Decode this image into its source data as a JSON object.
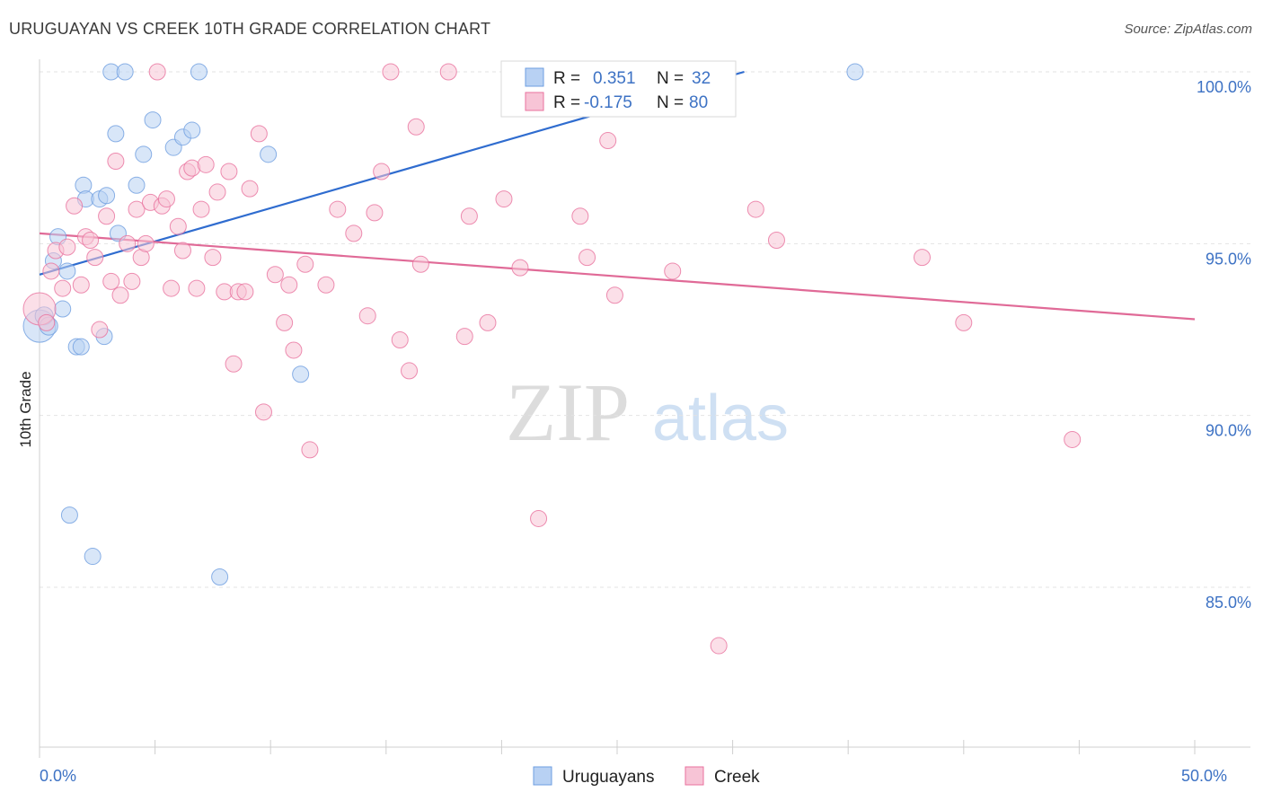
{
  "title": "URUGUAYAN VS CREEK 10TH GRADE CORRELATION CHART",
  "source": "Source: ZipAtlas.com",
  "watermark": {
    "zip": "ZIP",
    "atlas": "atlas"
  },
  "legend_top": {
    "rows": [
      {
        "r_label": "R =",
        "r_value": "0.351",
        "n_label": "N =",
        "n_value": "32"
      },
      {
        "r_label": "R =",
        "r_value": "-0.175",
        "n_label": "N =",
        "n_value": "80"
      }
    ]
  },
  "chart_data": {
    "type": "scatter",
    "ylabel": "10th Grade",
    "xlim": [
      0,
      50
    ],
    "ylim": [
      80.3,
      100.8
    ],
    "x_tick_labels": [
      {
        "x": 0,
        "label": "0.0%"
      },
      {
        "x": 50,
        "label": "50.0%"
      }
    ],
    "y_tick_labels": [
      {
        "y": 100,
        "label": "100.0%"
      },
      {
        "y": 95,
        "label": "95.0%"
      },
      {
        "y": 90,
        "label": "90.0%"
      },
      {
        "y": 85,
        "label": "85.0%"
      }
    ],
    "grid": true,
    "legend_position": "bottom-center",
    "series": [
      {
        "name": "Uruguayans",
        "color": "#6e9ee0",
        "fill": "#b8d1f3",
        "r": 0.351,
        "n": 32,
        "trend": {
          "x": [
            0,
            30.5
          ],
          "y": [
            94.1,
            100.0
          ],
          "dashed_to_x": 30.5
        },
        "points": [
          {
            "x": 0.0,
            "y": 92.6,
            "s": 18
          },
          {
            "x": 0.2,
            "y": 92.9,
            "s": 10
          },
          {
            "x": 0.4,
            "y": 92.6,
            "s": 10
          },
          {
            "x": 0.6,
            "y": 94.5,
            "s": 9
          },
          {
            "x": 0.8,
            "y": 95.2,
            "s": 9
          },
          {
            "x": 1.0,
            "y": 93.1,
            "s": 9
          },
          {
            "x": 1.2,
            "y": 94.2,
            "s": 9
          },
          {
            "x": 1.3,
            "y": 87.1,
            "s": 9
          },
          {
            "x": 1.6,
            "y": 92.0,
            "s": 9
          },
          {
            "x": 1.8,
            "y": 92.0,
            "s": 9
          },
          {
            "x": 1.9,
            "y": 96.7,
            "s": 9
          },
          {
            "x": 2.0,
            "y": 96.3,
            "s": 9
          },
          {
            "x": 2.3,
            "y": 85.9,
            "s": 9
          },
          {
            "x": 2.6,
            "y": 96.3,
            "s": 9
          },
          {
            "x": 2.8,
            "y": 92.3,
            "s": 9
          },
          {
            "x": 2.9,
            "y": 96.4,
            "s": 9
          },
          {
            "x": 3.1,
            "y": 100.0,
            "s": 9
          },
          {
            "x": 3.3,
            "y": 98.2,
            "s": 9
          },
          {
            "x": 3.4,
            "y": 95.3,
            "s": 9
          },
          {
            "x": 3.7,
            "y": 100.0,
            "s": 9
          },
          {
            "x": 4.2,
            "y": 96.7,
            "s": 9
          },
          {
            "x": 4.5,
            "y": 97.6,
            "s": 9
          },
          {
            "x": 4.9,
            "y": 98.6,
            "s": 9
          },
          {
            "x": 5.8,
            "y": 97.8,
            "s": 9
          },
          {
            "x": 6.2,
            "y": 98.1,
            "s": 9
          },
          {
            "x": 6.6,
            "y": 98.3,
            "s": 9
          },
          {
            "x": 6.9,
            "y": 100.0,
            "s": 9
          },
          {
            "x": 7.8,
            "y": 85.3,
            "s": 9
          },
          {
            "x": 9.9,
            "y": 97.6,
            "s": 9
          },
          {
            "x": 11.3,
            "y": 91.2,
            "s": 9
          },
          {
            "x": 23.6,
            "y": 100.0,
            "s": 9
          },
          {
            "x": 35.3,
            "y": 100.0,
            "s": 9
          }
        ]
      },
      {
        "name": "Creek",
        "color": "#e8729e",
        "fill": "#f7c4d6",
        "r": -0.175,
        "n": 80,
        "trend": {
          "x": [
            0,
            50
          ],
          "y": [
            95.3,
            92.8
          ]
        },
        "points": [
          {
            "x": 0.0,
            "y": 93.1,
            "s": 18
          },
          {
            "x": 0.3,
            "y": 92.7,
            "s": 9
          },
          {
            "x": 0.5,
            "y": 94.2,
            "s": 9
          },
          {
            "x": 0.7,
            "y": 94.8,
            "s": 9
          },
          {
            "x": 1.0,
            "y": 93.7,
            "s": 9
          },
          {
            "x": 1.2,
            "y": 94.9,
            "s": 9
          },
          {
            "x": 1.5,
            "y": 96.1,
            "s": 9
          },
          {
            "x": 1.8,
            "y": 93.8,
            "s": 9
          },
          {
            "x": 2.0,
            "y": 95.2,
            "s": 9
          },
          {
            "x": 2.2,
            "y": 95.1,
            "s": 9
          },
          {
            "x": 2.4,
            "y": 94.6,
            "s": 9
          },
          {
            "x": 2.6,
            "y": 92.5,
            "s": 9
          },
          {
            "x": 2.9,
            "y": 95.8,
            "s": 9
          },
          {
            "x": 3.1,
            "y": 93.9,
            "s": 9
          },
          {
            "x": 3.3,
            "y": 97.4,
            "s": 9
          },
          {
            "x": 3.5,
            "y": 93.5,
            "s": 9
          },
          {
            "x": 3.8,
            "y": 95.0,
            "s": 9
          },
          {
            "x": 4.0,
            "y": 93.9,
            "s": 9
          },
          {
            "x": 4.2,
            "y": 96.0,
            "s": 9
          },
          {
            "x": 4.4,
            "y": 94.6,
            "s": 9
          },
          {
            "x": 4.6,
            "y": 95.0,
            "s": 9
          },
          {
            "x": 4.8,
            "y": 96.2,
            "s": 9
          },
          {
            "x": 5.1,
            "y": 100.0,
            "s": 9
          },
          {
            "x": 5.3,
            "y": 96.1,
            "s": 9
          },
          {
            "x": 5.5,
            "y": 96.3,
            "s": 9
          },
          {
            "x": 5.7,
            "y": 93.7,
            "s": 9
          },
          {
            "x": 6.0,
            "y": 95.5,
            "s": 9
          },
          {
            "x": 6.2,
            "y": 94.8,
            "s": 9
          },
          {
            "x": 6.4,
            "y": 97.1,
            "s": 9
          },
          {
            "x": 6.6,
            "y": 97.2,
            "s": 9
          },
          {
            "x": 6.8,
            "y": 93.7,
            "s": 9
          },
          {
            "x": 7.0,
            "y": 96.0,
            "s": 9
          },
          {
            "x": 7.2,
            "y": 97.3,
            "s": 9
          },
          {
            "x": 7.5,
            "y": 94.6,
            "s": 9
          },
          {
            "x": 7.7,
            "y": 96.5,
            "s": 9
          },
          {
            "x": 8.0,
            "y": 93.6,
            "s": 9
          },
          {
            "x": 8.2,
            "y": 97.1,
            "s": 9
          },
          {
            "x": 8.4,
            "y": 91.5,
            "s": 9
          },
          {
            "x": 8.6,
            "y": 93.6,
            "s": 9
          },
          {
            "x": 8.9,
            "y": 93.6,
            "s": 9
          },
          {
            "x": 9.1,
            "y": 96.6,
            "s": 9
          },
          {
            "x": 9.5,
            "y": 98.2,
            "s": 9
          },
          {
            "x": 9.7,
            "y": 90.1,
            "s": 9
          },
          {
            "x": 10.2,
            "y": 94.1,
            "s": 9
          },
          {
            "x": 10.6,
            "y": 92.7,
            "s": 9
          },
          {
            "x": 10.8,
            "y": 93.8,
            "s": 9
          },
          {
            "x": 11.0,
            "y": 91.9,
            "s": 9
          },
          {
            "x": 11.5,
            "y": 94.4,
            "s": 9
          },
          {
            "x": 11.7,
            "y": 89.0,
            "s": 9
          },
          {
            "x": 12.4,
            "y": 93.8,
            "s": 9
          },
          {
            "x": 12.9,
            "y": 96.0,
            "s": 9
          },
          {
            "x": 13.6,
            "y": 95.3,
            "s": 9
          },
          {
            "x": 14.2,
            "y": 92.9,
            "s": 9
          },
          {
            "x": 14.5,
            "y": 95.9,
            "s": 9
          },
          {
            "x": 14.8,
            "y": 97.1,
            "s": 9
          },
          {
            "x": 15.2,
            "y": 100.0,
            "s": 9
          },
          {
            "x": 15.6,
            "y": 92.2,
            "s": 9
          },
          {
            "x": 16.0,
            "y": 91.3,
            "s": 9
          },
          {
            "x": 16.3,
            "y": 98.4,
            "s": 9
          },
          {
            "x": 16.5,
            "y": 94.4,
            "s": 9
          },
          {
            "x": 17.7,
            "y": 100.0,
            "s": 9
          },
          {
            "x": 18.4,
            "y": 92.3,
            "s": 9
          },
          {
            "x": 18.6,
            "y": 95.8,
            "s": 9
          },
          {
            "x": 19.4,
            "y": 92.7,
            "s": 9
          },
          {
            "x": 20.1,
            "y": 96.3,
            "s": 9
          },
          {
            "x": 20.8,
            "y": 94.3,
            "s": 9
          },
          {
            "x": 21.6,
            "y": 87.0,
            "s": 9
          },
          {
            "x": 22.8,
            "y": 100.0,
            "s": 9
          },
          {
            "x": 23.4,
            "y": 95.8,
            "s": 9
          },
          {
            "x": 23.6,
            "y": 100.0,
            "s": 9
          },
          {
            "x": 23.7,
            "y": 94.6,
            "s": 9
          },
          {
            "x": 24.6,
            "y": 98.0,
            "s": 9
          },
          {
            "x": 24.9,
            "y": 93.5,
            "s": 9
          },
          {
            "x": 27.4,
            "y": 94.2,
            "s": 9
          },
          {
            "x": 29.4,
            "y": 83.3,
            "s": 9
          },
          {
            "x": 31.0,
            "y": 96.0,
            "s": 9
          },
          {
            "x": 31.9,
            "y": 95.1,
            "s": 9
          },
          {
            "x": 38.2,
            "y": 94.6,
            "s": 9
          },
          {
            "x": 40.0,
            "y": 92.7,
            "s": 9
          },
          {
            "x": 44.7,
            "y": 89.3,
            "s": 9
          }
        ]
      }
    ]
  }
}
